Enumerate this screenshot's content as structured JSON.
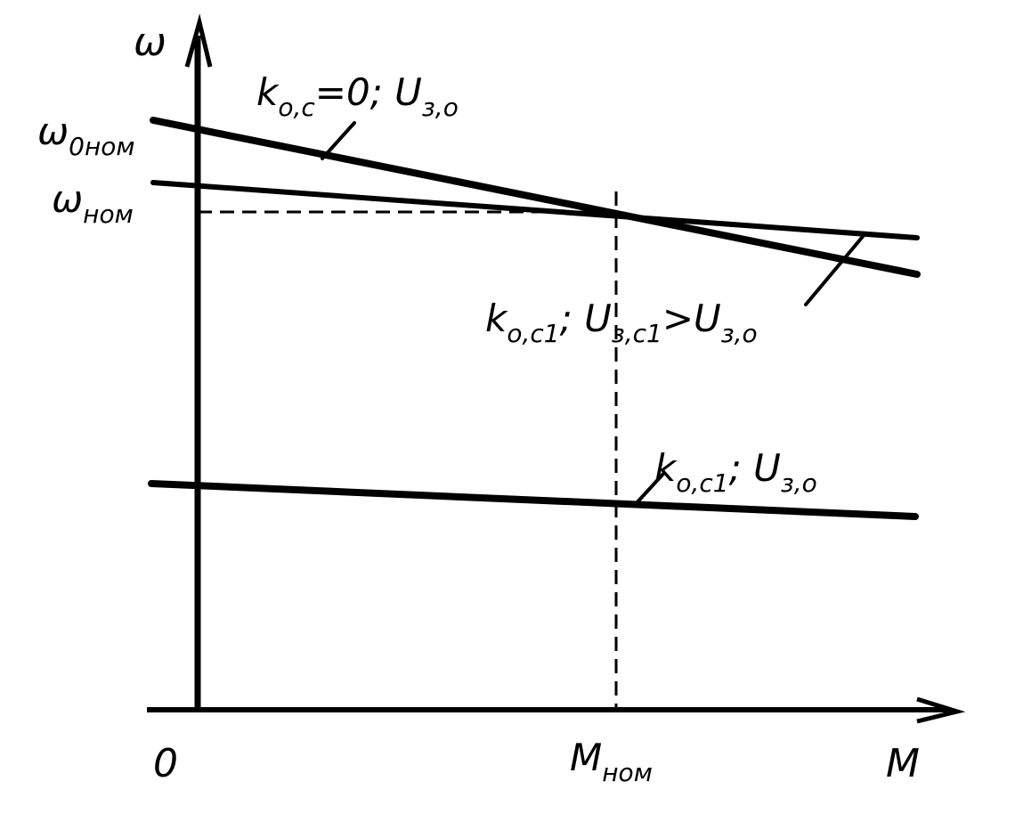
{
  "axes": {
    "y": "ω",
    "x": "M",
    "origin": "0"
  },
  "y_marks": [
    {
      "main": "ω",
      "sub": "0ном"
    },
    {
      "main": "ω",
      "sub": "ном"
    }
  ],
  "x_marks": [
    {
      "main": "M",
      "sub": "ном"
    }
  ],
  "curves": [
    {
      "label": [
        {
          "text": "k",
          "sub": "о,с"
        },
        {
          "text": "=0; U",
          "sub": "з,о"
        }
      ]
    },
    {
      "label": [
        {
          "text": "k",
          "sub": "о,с1"
        },
        {
          "text": "; U",
          "sub": "з,с1"
        },
        {
          "text": ">U",
          "sub": "з,о"
        }
      ]
    },
    {
      "label": [
        {
          "text": "k",
          "sub": "о,с1"
        },
        {
          "text": "; U",
          "sub": "з,о"
        }
      ]
    }
  ]
}
